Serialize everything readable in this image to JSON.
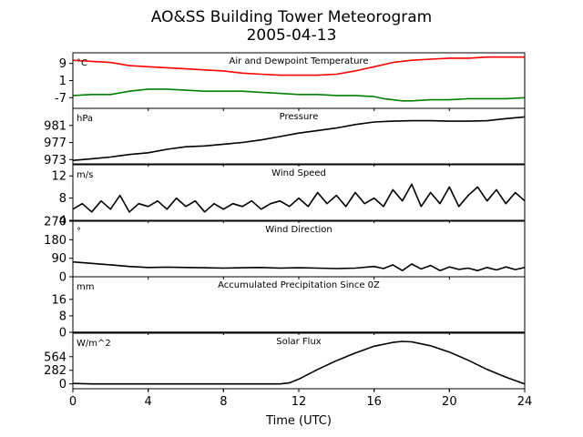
{
  "chart_data": {
    "type": "line",
    "title_line1": "AO&SS Building Tower Meteorogram",
    "title_line2": "2005-04-13",
    "xlabel": "Time (UTC)",
    "xlim": [
      0,
      24
    ],
    "xticks": [
      0,
      4,
      8,
      12,
      16,
      20,
      24
    ],
    "panels": [
      {
        "title": "Air and Dewpoint Temperature",
        "unit": "°C",
        "ylim": [
          -12,
          14
        ],
        "yticks": [
          9,
          1,
          -7
        ],
        "series": [
          {
            "color": "#ff0000",
            "x": [
              0,
              1,
              2,
              3,
              4,
              5,
              6,
              7,
              8,
              9,
              10,
              11,
              12,
              13,
              14,
              15,
              16,
              17,
              18,
              19,
              20,
              21,
              22,
              23,
              24
            ],
            "y": [
              10.5,
              10,
              9.5,
              8,
              7.5,
              7,
              6.5,
              6,
              5.5,
              4.5,
              4,
              3.5,
              3.5,
              3.5,
              4,
              5.5,
              7.5,
              9.5,
              10.5,
              11,
              11.5,
              11.5,
              12,
              12,
              12
            ]
          },
          {
            "color": "#008000",
            "x": [
              0,
              1,
              2,
              3,
              4,
              5,
              6,
              7,
              8,
              9,
              10,
              11,
              12,
              13,
              14,
              15,
              16,
              16.5,
              17,
              17.5,
              18,
              19,
              20,
              21,
              22,
              23,
              24
            ],
            "y": [
              -6,
              -5.5,
              -5.5,
              -4,
              -3,
              -3,
              -3.5,
              -4,
              -4,
              -4,
              -4.5,
              -5,
              -5.5,
              -5.5,
              -6,
              -6,
              -6.5,
              -7.5,
              -8,
              -8.5,
              -8.5,
              -8,
              -8,
              -7.5,
              -7.5,
              -7.5,
              -7
            ]
          }
        ]
      },
      {
        "title": "Pressure",
        "unit": "hPa",
        "ylim": [
          972,
          985
        ],
        "yticks": [
          981,
          977,
          973
        ],
        "series": [
          {
            "color": "#000000",
            "x": [
              0,
              1,
              2,
              3,
              4,
              5,
              6,
              7,
              8,
              9,
              10,
              11,
              12,
              13,
              14,
              15,
              16,
              17,
              18,
              19,
              20,
              21,
              22,
              23,
              24
            ],
            "y": [
              972.8,
              973.2,
              973.6,
              974.2,
              974.6,
              975.4,
              976.0,
              976.2,
              976.6,
              977.0,
              977.6,
              978.4,
              979.2,
              979.8,
              980.4,
              981.2,
              981.8,
              982.0,
              982.1,
              982.1,
              982.0,
              982.0,
              982.1,
              982.6,
              983.0
            ]
          }
        ]
      },
      {
        "title": "Wind Speed",
        "unit": "m/s",
        "ylim": [
          4,
          14
        ],
        "yticks": [
          12,
          8,
          4
        ],
        "series": [
          {
            "color": "#000000",
            "x": [
              0,
              0.5,
              1,
              1.5,
              2,
              2.5,
              3,
              3.5,
              4,
              4.5,
              5,
              5.5,
              6,
              6.5,
              7,
              7.5,
              8,
              8.5,
              9,
              9.5,
              10,
              10.5,
              11,
              11.5,
              12,
              12.5,
              13,
              13.5,
              14,
              14.5,
              15,
              15.5,
              16,
              16.5,
              17,
              17.5,
              18,
              18.5,
              19,
              19.5,
              20,
              20.5,
              21,
              21.5,
              22,
              22.5,
              23,
              23.5,
              24
            ],
            "y": [
              6,
              7,
              5.5,
              7.5,
              6,
              8.5,
              5.5,
              7,
              6.5,
              7.5,
              6,
              8,
              6.5,
              7.5,
              5.5,
              7,
              6,
              7,
              6.5,
              7.5,
              6,
              7,
              7.5,
              6.5,
              8,
              6.5,
              9,
              7,
              8.5,
              6.5,
              9,
              7,
              8,
              6.5,
              9.5,
              7.5,
              10.5,
              6.5,
              9,
              7,
              10,
              6.5,
              8.5,
              10,
              7.5,
              9.5,
              7,
              9,
              7.5
            ]
          }
        ]
      },
      {
        "title": "Wind Direction",
        "unit": "°",
        "ylim": [
          0,
          270
        ],
        "yticks": [
          270,
          180,
          90,
          0
        ],
        "series": [
          {
            "color": "#000000",
            "x": [
              0,
              1,
              2,
              3,
              4,
              5,
              6,
              7,
              8,
              9,
              10,
              11,
              12,
              13,
              14,
              15,
              16,
              16.5,
              17,
              17.5,
              18,
              18.5,
              19,
              19.5,
              20,
              20.5,
              21,
              21.5,
              22,
              22.5,
              23,
              23.5,
              24
            ],
            "y": [
              72,
              65,
              58,
              50,
              45,
              47,
              45,
              44,
              42,
              44,
              45,
              42,
              44,
              42,
              40,
              42,
              50,
              40,
              58,
              30,
              62,
              38,
              55,
              30,
              48,
              36,
              42,
              30,
              45,
              33,
              48,
              35,
              45
            ]
          }
        ]
      },
      {
        "title": "Accumulated Precipitation Since 0Z",
        "unit": "mm",
        "ylim": [
          0,
          27
        ],
        "yticks": [
          16,
          8,
          0
        ],
        "series": [
          {
            "color": "#000000",
            "x": [
              0,
              24
            ],
            "y": [
              0,
              0
            ]
          }
        ]
      },
      {
        "title": "Solar Flux",
        "unit": "W/m^2",
        "ylim": [
          -100,
          1050
        ],
        "yticks": [
          564,
          282,
          0
        ],
        "series": [
          {
            "color": "#000000",
            "x": [
              0,
              1,
              2,
              3,
              4,
              5,
              6,
              7,
              8,
              9,
              10,
              11,
              11.5,
              12,
              13,
              14,
              15,
              16,
              17,
              17.5,
              18,
              19,
              20,
              21,
              22,
              23,
              24
            ],
            "y": [
              10,
              0,
              0,
              0,
              0,
              0,
              0,
              0,
              0,
              0,
              0,
              0,
              20,
              100,
              300,
              480,
              640,
              780,
              860,
              880,
              870,
              790,
              660,
              490,
              300,
              140,
              0
            ]
          }
        ]
      }
    ]
  }
}
